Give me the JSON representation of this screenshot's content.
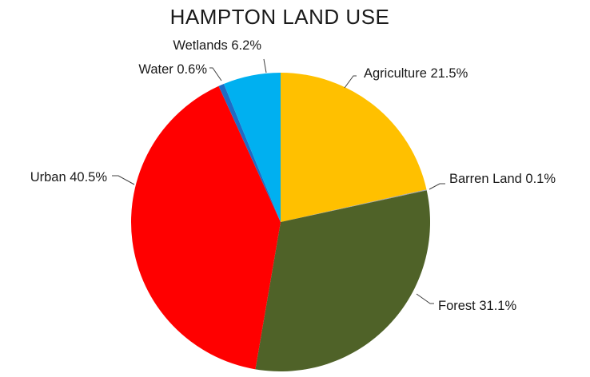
{
  "chart_data": {
    "type": "pie",
    "title": "HAMPTON LAND USE",
    "slices": [
      {
        "label": "Agriculture 21.5%",
        "value": 21.5,
        "color": "#FFC000"
      },
      {
        "label": "Barren Land 0.1%",
        "value": 0.1,
        "color": "#A5A5A5"
      },
      {
        "label": "Forest 31.1%",
        "value": 31.1,
        "color": "#4F6228"
      },
      {
        "label": "Urban 40.5%",
        "value": 40.5,
        "color": "#FF0000"
      },
      {
        "label": "Water 0.6%",
        "value": 0.6,
        "color": "#1F6BC4"
      },
      {
        "label": "Wetlands 6.2%",
        "value": 6.2,
        "color": "#00B0F0"
      }
    ],
    "start": "12 o'clock",
    "direction": "clockwise",
    "legend": "none",
    "data_labels": "outside with leader lines"
  }
}
